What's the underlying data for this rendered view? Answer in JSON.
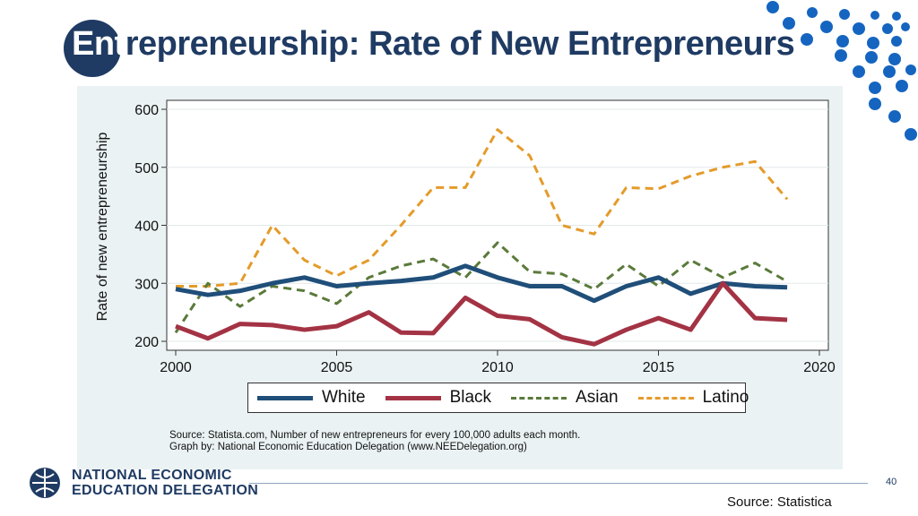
{
  "slide": {
    "title_lead": "Ent",
    "title_rest": "repreneurship: Rate of New Entrepreneurs",
    "page_number": "40",
    "footer_source": "Source: Statistica",
    "logo_line1": "NATIONAL ECONOMIC",
    "logo_line2": "EDUCATION DELEGATION"
  },
  "colors": {
    "title": "#1f3b63",
    "dots": "#1565c0",
    "panel": "#eaf2f3"
  },
  "chart_data": {
    "type": "line",
    "ylabel": "Rate of new entrepreneurship",
    "xlabel": "",
    "xlim": [
      2000,
      2020
    ],
    "ylim": [
      200,
      600
    ],
    "x_ticks": [
      "2000",
      "2005",
      "2010",
      "2015",
      "2020"
    ],
    "y_ticks": [
      "200",
      "300",
      "400",
      "500",
      "600"
    ],
    "grid": true,
    "legend_position": "bottom",
    "x": [
      2000,
      2001,
      2002,
      2003,
      2004,
      2005,
      2006,
      2007,
      2008,
      2009,
      2010,
      2011,
      2012,
      2013,
      2014,
      2015,
      2016,
      2017,
      2018,
      2019
    ],
    "series": [
      {
        "name": "White",
        "color": "#1f4e79",
        "dash": "solid",
        "values": [
          290,
          280,
          287,
          300,
          310,
          295,
          300,
          304,
          310,
          330,
          310,
          295,
          295,
          270,
          295,
          310,
          282,
          300,
          295,
          293
        ]
      },
      {
        "name": "Black",
        "color": "#a33344",
        "dash": "solid",
        "values": [
          226,
          205,
          230,
          228,
          220,
          226,
          250,
          215,
          214,
          275,
          244,
          238,
          207,
          195,
          220,
          240,
          220,
          300,
          240,
          237
        ]
      },
      {
        "name": "Asian",
        "color": "#5a7a3a",
        "dash": "dashed",
        "values": [
          215,
          300,
          260,
          295,
          287,
          265,
          310,
          330,
          342,
          310,
          370,
          320,
          316,
          290,
          333,
          295,
          340,
          310,
          335,
          303
        ]
      },
      {
        "name": "Latino",
        "color": "#e49b2a",
        "dash": "dashed",
        "values": [
          295,
          295,
          300,
          400,
          340,
          313,
          340,
          400,
          465,
          465,
          565,
          520,
          400,
          385,
          465,
          463,
          485,
          500,
          510,
          445
        ]
      }
    ],
    "source_line1": "Source: Statista.com, Number of new entrepreneurs for every 100,000 adults each month.",
    "source_line2": "Graph by: National Economic Education Delegation (www.NEEDelegation.org)"
  }
}
